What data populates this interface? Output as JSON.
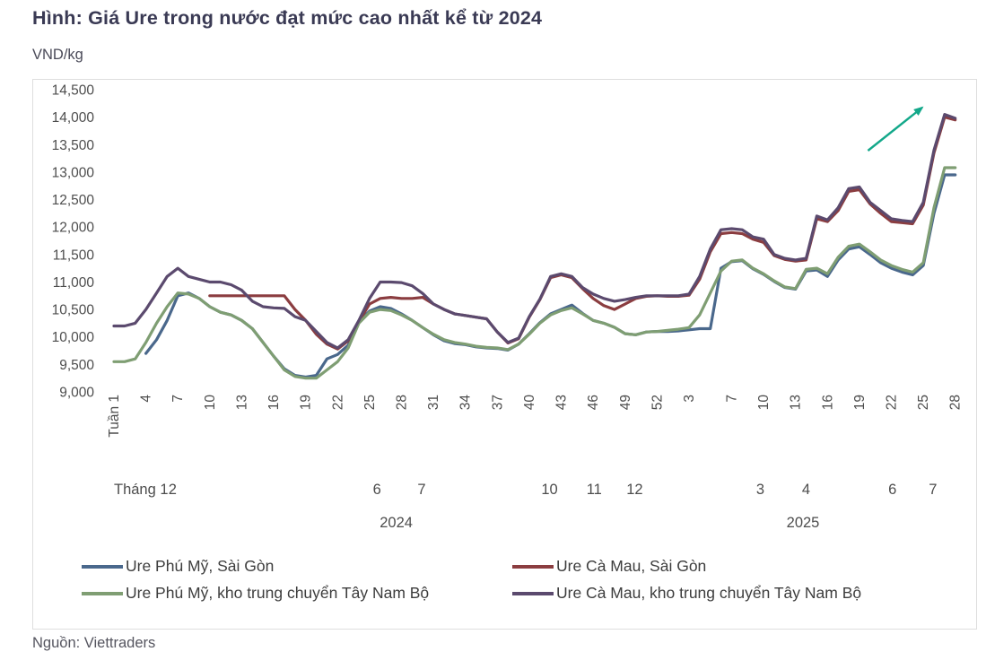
{
  "title": "Hình: Giá Ure trong nước đạt mức cao nhất kể từ 2024",
  "unit_label": "VND/kg",
  "source": "Nguồn: Viettraders",
  "chart_data": {
    "type": "line",
    "title": "Giá Ure trong nước",
    "ylabel": "VND/kg",
    "grid": false,
    "legend_position": "bottom",
    "y_axis": {
      "min": 9000,
      "max": 14500,
      "step": 500,
      "tick_labels": [
        "14,500",
        "14,000",
        "13,500",
        "13,000",
        "12,500",
        "12,000",
        "11,500",
        "11,000",
        "10,500",
        "10,000",
        "9,500",
        "9,000"
      ]
    },
    "x_axis": {
      "description": "Weekly data: weeks 1-52 of 2024 then weeks 1-28 of 2025 (80 points)",
      "week_ticks": [
        {
          "index": 0,
          "label": "Tuần 1"
        },
        {
          "index": 3,
          "label": "4"
        },
        {
          "index": 6,
          "label": "7"
        },
        {
          "index": 9,
          "label": "10"
        },
        {
          "index": 12,
          "label": "13"
        },
        {
          "index": 15,
          "label": "16"
        },
        {
          "index": 18,
          "label": "19"
        },
        {
          "index": 21,
          "label": "22"
        },
        {
          "index": 24,
          "label": "25"
        },
        {
          "index": 27,
          "label": "28"
        },
        {
          "index": 30,
          "label": "31"
        },
        {
          "index": 33,
          "label": "34"
        },
        {
          "index": 36,
          "label": "37"
        },
        {
          "index": 39,
          "label": "40"
        },
        {
          "index": 42,
          "label": "43"
        },
        {
          "index": 45,
          "label": "46"
        },
        {
          "index": 48,
          "label": "49"
        },
        {
          "index": 51,
          "label": "52"
        },
        {
          "index": 54,
          "label": "3"
        },
        {
          "index": 58,
          "label": "7"
        },
        {
          "index": 61,
          "label": "10"
        },
        {
          "index": 64,
          "label": "13"
        },
        {
          "index": 67,
          "label": "16"
        },
        {
          "index": 70,
          "label": "19"
        },
        {
          "index": 73,
          "label": "22"
        },
        {
          "index": 76,
          "label": "25"
        },
        {
          "index": 79,
          "label": "28"
        }
      ],
      "month_labels": [
        {
          "idx": 0,
          "label": "Tháng 1",
          "anchor": "start"
        },
        {
          "idx": 5.5,
          "label": "2"
        },
        {
          "idx": 24.7,
          "label": "6"
        },
        {
          "idx": 28.9,
          "label": "7"
        },
        {
          "idx": 40.9,
          "label": "10"
        },
        {
          "idx": 45.1,
          "label": "11"
        },
        {
          "idx": 48.9,
          "label": "12"
        },
        {
          "idx": 60.7,
          "label": "3"
        },
        {
          "idx": 65,
          "label": "4"
        },
        {
          "idx": 73.1,
          "label": "6"
        },
        {
          "idx": 76.9,
          "label": "7"
        }
      ],
      "year_labels": [
        {
          "idx": 26.5,
          "label": "2024"
        },
        {
          "idx": 64.7,
          "label": "2025"
        }
      ]
    },
    "series": [
      {
        "name": "Ure Phú Mỹ, Sài Gòn",
        "color": "#4a688c",
        "values": [
          null,
          null,
          null,
          9700,
          9950,
          10300,
          10750,
          10800,
          10700,
          10550,
          10450,
          10400,
          10300,
          10150,
          9900,
          9650,
          9420,
          9300,
          9270,
          9300,
          9600,
          9680,
          9850,
          10280,
          10470,
          10550,
          10520,
          10420,
          10300,
          10170,
          10040,
          9930,
          9880,
          9860,
          9820,
          9800,
          9790,
          9760,
          9870,
          10060,
          10260,
          10420,
          10500,
          10580,
          10430,
          10300,
          10250,
          10175,
          10060,
          10040,
          10090,
          10100,
          10100,
          10110,
          10130,
          10150,
          10150,
          11250,
          11370,
          11390,
          11240,
          11140,
          11010,
          10900,
          10870,
          11200,
          11220,
          11100,
          11400,
          11600,
          11640,
          11500,
          11350,
          11250,
          11180,
          11130,
          11300,
          12250,
          12950,
          12950
        ]
      },
      {
        "name": "Ure Cà Mau, Sài Gòn",
        "color": "#8b3d40",
        "values": [
          null,
          null,
          null,
          null,
          null,
          null,
          null,
          null,
          null,
          10750,
          10750,
          10750,
          10750,
          10750,
          10750,
          10750,
          10750,
          10500,
          10300,
          10050,
          9870,
          9780,
          9930,
          10280,
          10600,
          10700,
          10720,
          10700,
          10700,
          10720,
          10600,
          10500,
          10420,
          10390,
          10360,
          10330,
          10090,
          9890,
          9970,
          10360,
          10680,
          11080,
          11130,
          11080,
          10880,
          10700,
          10570,
          10500,
          10600,
          10700,
          10740,
          10750,
          10740,
          10740,
          10760,
          11050,
          11550,
          11880,
          11900,
          11880,
          11780,
          11720,
          11480,
          11410,
          11380,
          11400,
          12150,
          12100,
          12300,
          12650,
          12680,
          12420,
          12250,
          12100,
          12080,
          12060,
          12400,
          13350,
          14000,
          13950
        ]
      },
      {
        "name": "Ure Phú Mỹ, kho trung chuyển Tây Nam Bộ",
        "color": "#7f9e73",
        "values": [
          9550,
          9550,
          9600,
          9900,
          10250,
          10550,
          10800,
          10780,
          10700,
          10550,
          10450,
          10400,
          10300,
          10150,
          9900,
          9650,
          9400,
          9280,
          9250,
          9250,
          9400,
          9550,
          9800,
          10250,
          10450,
          10500,
          10480,
          10400,
          10300,
          10170,
          10050,
          9950,
          9900,
          9870,
          9830,
          9810,
          9800,
          9770,
          9870,
          10050,
          10250,
          10400,
          10480,
          10530,
          10420,
          10300,
          10250,
          10175,
          10060,
          10040,
          10090,
          10100,
          10120,
          10140,
          10170,
          10400,
          10800,
          11200,
          11380,
          11400,
          11250,
          11150,
          11020,
          10910,
          10880,
          11230,
          11250,
          11150,
          11450,
          11650,
          11690,
          11550,
          11400,
          11300,
          11230,
          11180,
          11350,
          12350,
          13080,
          13080
        ]
      },
      {
        "name": "Ure Cà Mau, kho trung chuyển Tây Nam Bộ",
        "color": "#5b4a6e",
        "values": [
          10200,
          10200,
          10250,
          10500,
          10800,
          11100,
          11250,
          11100,
          11050,
          11000,
          11000,
          10950,
          10850,
          10650,
          10550,
          10530,
          10520,
          10370,
          10300,
          10100,
          9900,
          9800,
          9950,
          10300,
          10700,
          11000,
          11000,
          10990,
          10930,
          10790,
          10600,
          10500,
          10420,
          10390,
          10360,
          10330,
          10090,
          9900,
          9980,
          10370,
          10690,
          11100,
          11150,
          11100,
          10900,
          10780,
          10700,
          10650,
          10680,
          10720,
          10750,
          10750,
          10750,
          10750,
          10780,
          11100,
          11600,
          11950,
          11970,
          11950,
          11820,
          11780,
          11500,
          11430,
          11400,
          11430,
          12200,
          12130,
          12350,
          12700,
          12730,
          12450,
          12300,
          12150,
          12120,
          12100,
          12450,
          13400,
          14050,
          13980
        ]
      }
    ],
    "annotation_arrow": {
      "color": "#13a88a",
      "from": {
        "week_index": 70.8,
        "value": 13390
      },
      "to": {
        "week_index": 75.9,
        "value": 14175
      }
    }
  }
}
